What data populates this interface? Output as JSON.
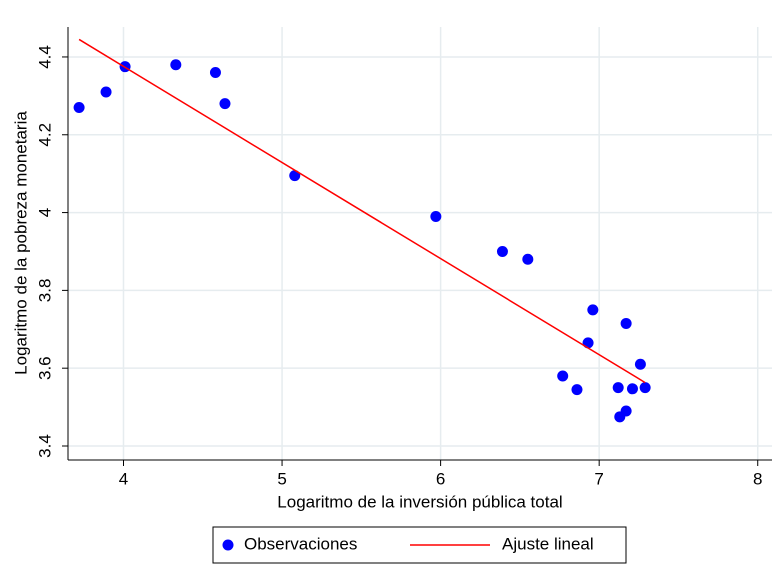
{
  "chart_data": {
    "type": "scatter",
    "x_label": "Logaritmo de la inversión pública total",
    "y_label": "Logaritmo de la pobreza monetaria",
    "xlim": [
      3.65,
      8.09
    ],
    "ylim": [
      3.364,
      4.477
    ],
    "xticks": [
      4,
      5,
      6,
      7,
      8
    ],
    "yticks": [
      3.4,
      3.6,
      3.8,
      4,
      4.2,
      4.4
    ],
    "grid": true,
    "legend": "bottom",
    "series": [
      {
        "name": "Observaciones",
        "type": "scatter",
        "color": "#0000ff",
        "x": [
          3.72,
          3.89,
          4.01,
          4.33,
          4.58,
          4.64,
          5.08,
          5.97,
          6.39,
          6.55,
          6.96,
          7.17,
          6.93,
          7.26,
          6.77,
          6.86,
          7.12,
          7.21,
          7.29,
          7.17,
          7.13
        ],
        "values": [
          4.27,
          4.31,
          4.375,
          4.38,
          4.36,
          4.28,
          4.095,
          3.99,
          3.9,
          3.88,
          3.75,
          3.715,
          3.665,
          3.61,
          3.58,
          3.545,
          3.55,
          3.547,
          3.55,
          3.49,
          3.475
        ]
      },
      {
        "name": "Ajuste lineal",
        "type": "line",
        "color": "#ff0000",
        "x": [
          3.72,
          7.29
        ],
        "values": [
          4.445,
          3.563
        ]
      }
    ]
  }
}
